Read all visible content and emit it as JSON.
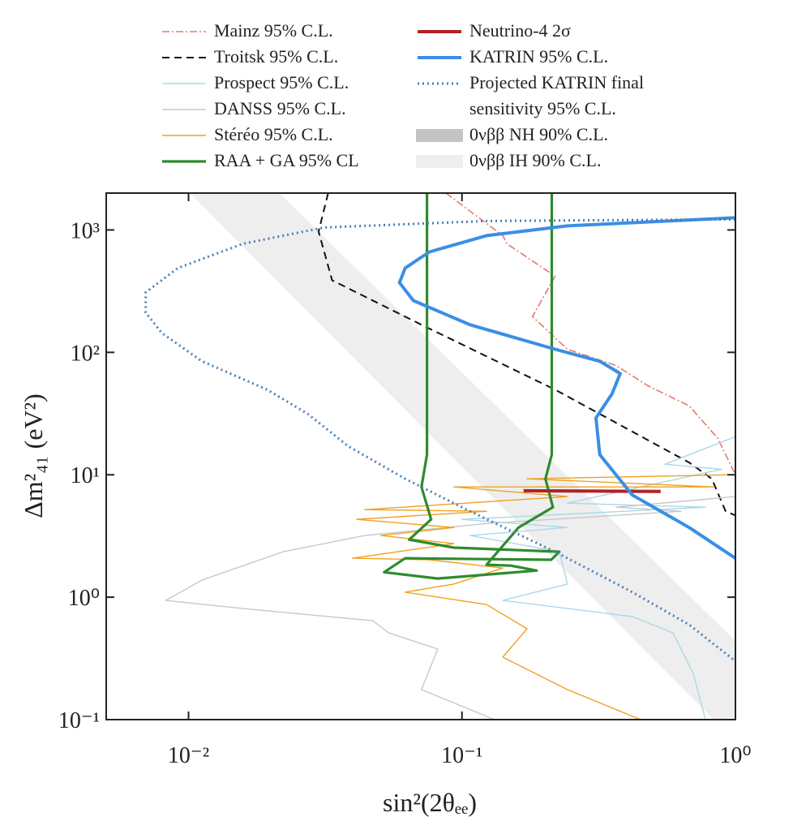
{
  "chart_data": {
    "type": "line",
    "xlabel": "sin²(2θₑₑ)",
    "ylabel": "Δm²₄₁ (eV²)",
    "xscale": "log",
    "yscale": "log",
    "xlim": [
      0.005,
      1
    ],
    "ylim": [
      0.1,
      2000
    ],
    "xticks": [
      {
        "value": 0.01,
        "label": "10⁻²"
      },
      {
        "value": 0.1,
        "label": "10⁻¹"
      },
      {
        "value": 1,
        "label": "10⁰"
      }
    ],
    "yticks": [
      {
        "value": 0.1,
        "label": "10⁻¹"
      },
      {
        "value": 1,
        "label": "10⁰"
      },
      {
        "value": 10,
        "label": "10¹"
      },
      {
        "value": 100,
        "label": "10²"
      },
      {
        "value": 1000,
        "label": "10³"
      }
    ],
    "legend": "top",
    "series": [
      {
        "name": "Mainz 95% C.L.",
        "kind": "line",
        "color": "#e8796b",
        "width": 1.6,
        "dash": "9,3,2,3",
        "x": [
          0.0873,
          0.141,
          0.146,
          0.219,
          0.181,
          0.243,
          0.366,
          0.481,
          0.677,
          0.861,
          1.0
        ],
        "y": [
          2000,
          899,
          771,
          419,
          196,
          106,
          78,
          53,
          36.6,
          19.9,
          10
        ]
      },
      {
        "name": "Troitsk 95% C.L.",
        "kind": "line",
        "color": "#111111",
        "width": 2,
        "dash": "9,6",
        "x": [
          0.0324,
          0.0299,
          0.0335,
          0.0711,
          0.219,
          0.677,
          0.82,
          0.921,
          1.0
        ],
        "y": [
          2000,
          970,
          388,
          168,
          49.6,
          12.6,
          9.27,
          5.03,
          4.66
        ]
      },
      {
        "name": "Prospect 95% C.L.",
        "kind": "line",
        "color": "#a9d8e8",
        "width": 1.4,
        "dash": "",
        "x": [
          1.0,
          0.552,
          0.89,
          0.243,
          0.777,
          0.1,
          0.243,
          0.107,
          0.227,
          0.243,
          0.141,
          0.42,
          0.591,
          0.701,
          0.777
        ],
        "y": [
          20.5,
          12.2,
          11.1,
          5.86,
          5.43,
          4.32,
          3.71,
          3.19,
          2.35,
          1.28,
          0.941,
          0.694,
          0.511,
          0.238,
          0.1
        ]
      },
      {
        "name": "DANSS 95% C.L.",
        "kind": "line",
        "color": "#c8c8c8",
        "width": 1.4,
        "dash": "",
        "x": [
          1.0,
          0.366,
          0.633,
          0.123,
          0.0441,
          0.0222,
          0.0112,
          0.00826,
          0.0158,
          0.0472,
          0.054,
          0.0815,
          0.0711,
          0.1315
        ],
        "y": [
          6.63,
          5.43,
          5.03,
          4.0,
          3.19,
          2.35,
          1.38,
          0.941,
          0.808,
          0.642,
          0.511,
          0.377,
          0.176,
          0.1
        ]
      },
      {
        "name": "Stéréo 95% C.L.",
        "kind": "line",
        "color": "#f0a020",
        "width": 1.4,
        "dash": "",
        "x": [
          0.953,
          0.173,
          0.832,
          0.0934,
          0.243,
          0.0441,
          0.123,
          0.0412,
          0.0934,
          0.0505,
          0.0934,
          0.0398,
          0.076,
          0.141,
          0.0934,
          0.062,
          0.123,
          0.173,
          0.141,
          0.243,
          0.45
        ],
        "y": [
          10,
          9.27,
          7.96,
          7.96,
          6.63,
          5.19,
          5.03,
          4.32,
          3.71,
          3.19,
          2.74,
          2.08,
          2.02,
          1.73,
          1.28,
          1.1,
          0.871,
          0.552,
          0.324,
          0.176,
          0.1
        ]
      },
      {
        "name": "RAA + GA 95% CL",
        "kind": "line",
        "color": "#2e8b2e",
        "width": 3.2,
        "dash": "",
        "x": [
          0.0745,
          0.0745,
          0.0711,
          0.0771,
          0.0641,
          0.0934,
          0.227,
          0.212,
          0.062,
          0.0519,
          0.0815,
          0.1875,
          0.151,
          0.123,
          0.161,
          0.215,
          0.202,
          0.213,
          0.213
        ],
        "y": [
          2000,
          14.6,
          7.96,
          4.32,
          2.95,
          2.54,
          2.35,
          2.02,
          2.08,
          1.6,
          1.42,
          1.65,
          1.81,
          1.84,
          3.71,
          5.43,
          9.27,
          14.6,
          2000
        ]
      },
      {
        "name": "Neutrino-4 2σ",
        "kind": "line",
        "color": "#b22222",
        "width": 4,
        "dash": "",
        "x": [
          0.168,
          0.533
        ],
        "y": [
          7.4,
          7.3
        ]
      },
      {
        "name": "KATRIN 95% C.L.",
        "kind": "line",
        "color": "#3a8ee6",
        "width": 4,
        "dash": "",
        "x": [
          1.0,
          0.243,
          0.123,
          0.076,
          0.062,
          0.0591,
          0.0664,
          0.107,
          0.219,
          0.319,
          0.379,
          0.354,
          0.309,
          0.319,
          0.42,
          0.677,
          1.0
        ],
        "y": [
          1257,
          1079,
          899,
          662,
          488,
          371,
          265,
          168,
          106,
          84.6,
          67.2,
          45.9,
          29.1,
          14.6,
          6.83,
          3.71,
          2.08
        ]
      },
      {
        "name": "Projected KATRIN final sensitivity 95% C.L.",
        "kind": "line",
        "color": "#4a7fb8",
        "width": 3,
        "dash": "2,4",
        "x": [
          1.0,
          0.123,
          0.0313,
          0.0158,
          0.00914,
          0.00697,
          0.00697,
          0.00798,
          0.0112,
          0.0194,
          0.0273,
          0.0384,
          0.062,
          0.107,
          0.219,
          0.42,
          0.677,
          1.0
        ],
        "y": [
          1219,
          1183,
          1047,
          771,
          488,
          309,
          211,
          144,
          84.6,
          49.6,
          31.4,
          17.1,
          9.27,
          5.03,
          2.35,
          1.1,
          0.596,
          0.3
        ]
      },
      {
        "name": "0νββ NH 90% C.L.",
        "kind": "band",
        "color": "#c4c4c4",
        "x": [
          0.0158,
          1.0,
          1.0,
          0.0169
        ],
        "y": [
          2000,
          0.205,
          0.13,
          2000
        ]
      },
      {
        "name": "0νββ IH 90% C.L.",
        "kind": "band",
        "color": "#eeeeee",
        "x": [
          0.0101,
          0.0215,
          1.0,
          1.0,
          0.832
        ],
        "y": [
          2000,
          2000,
          0.439,
          0.1,
          0.1
        ]
      }
    ]
  }
}
